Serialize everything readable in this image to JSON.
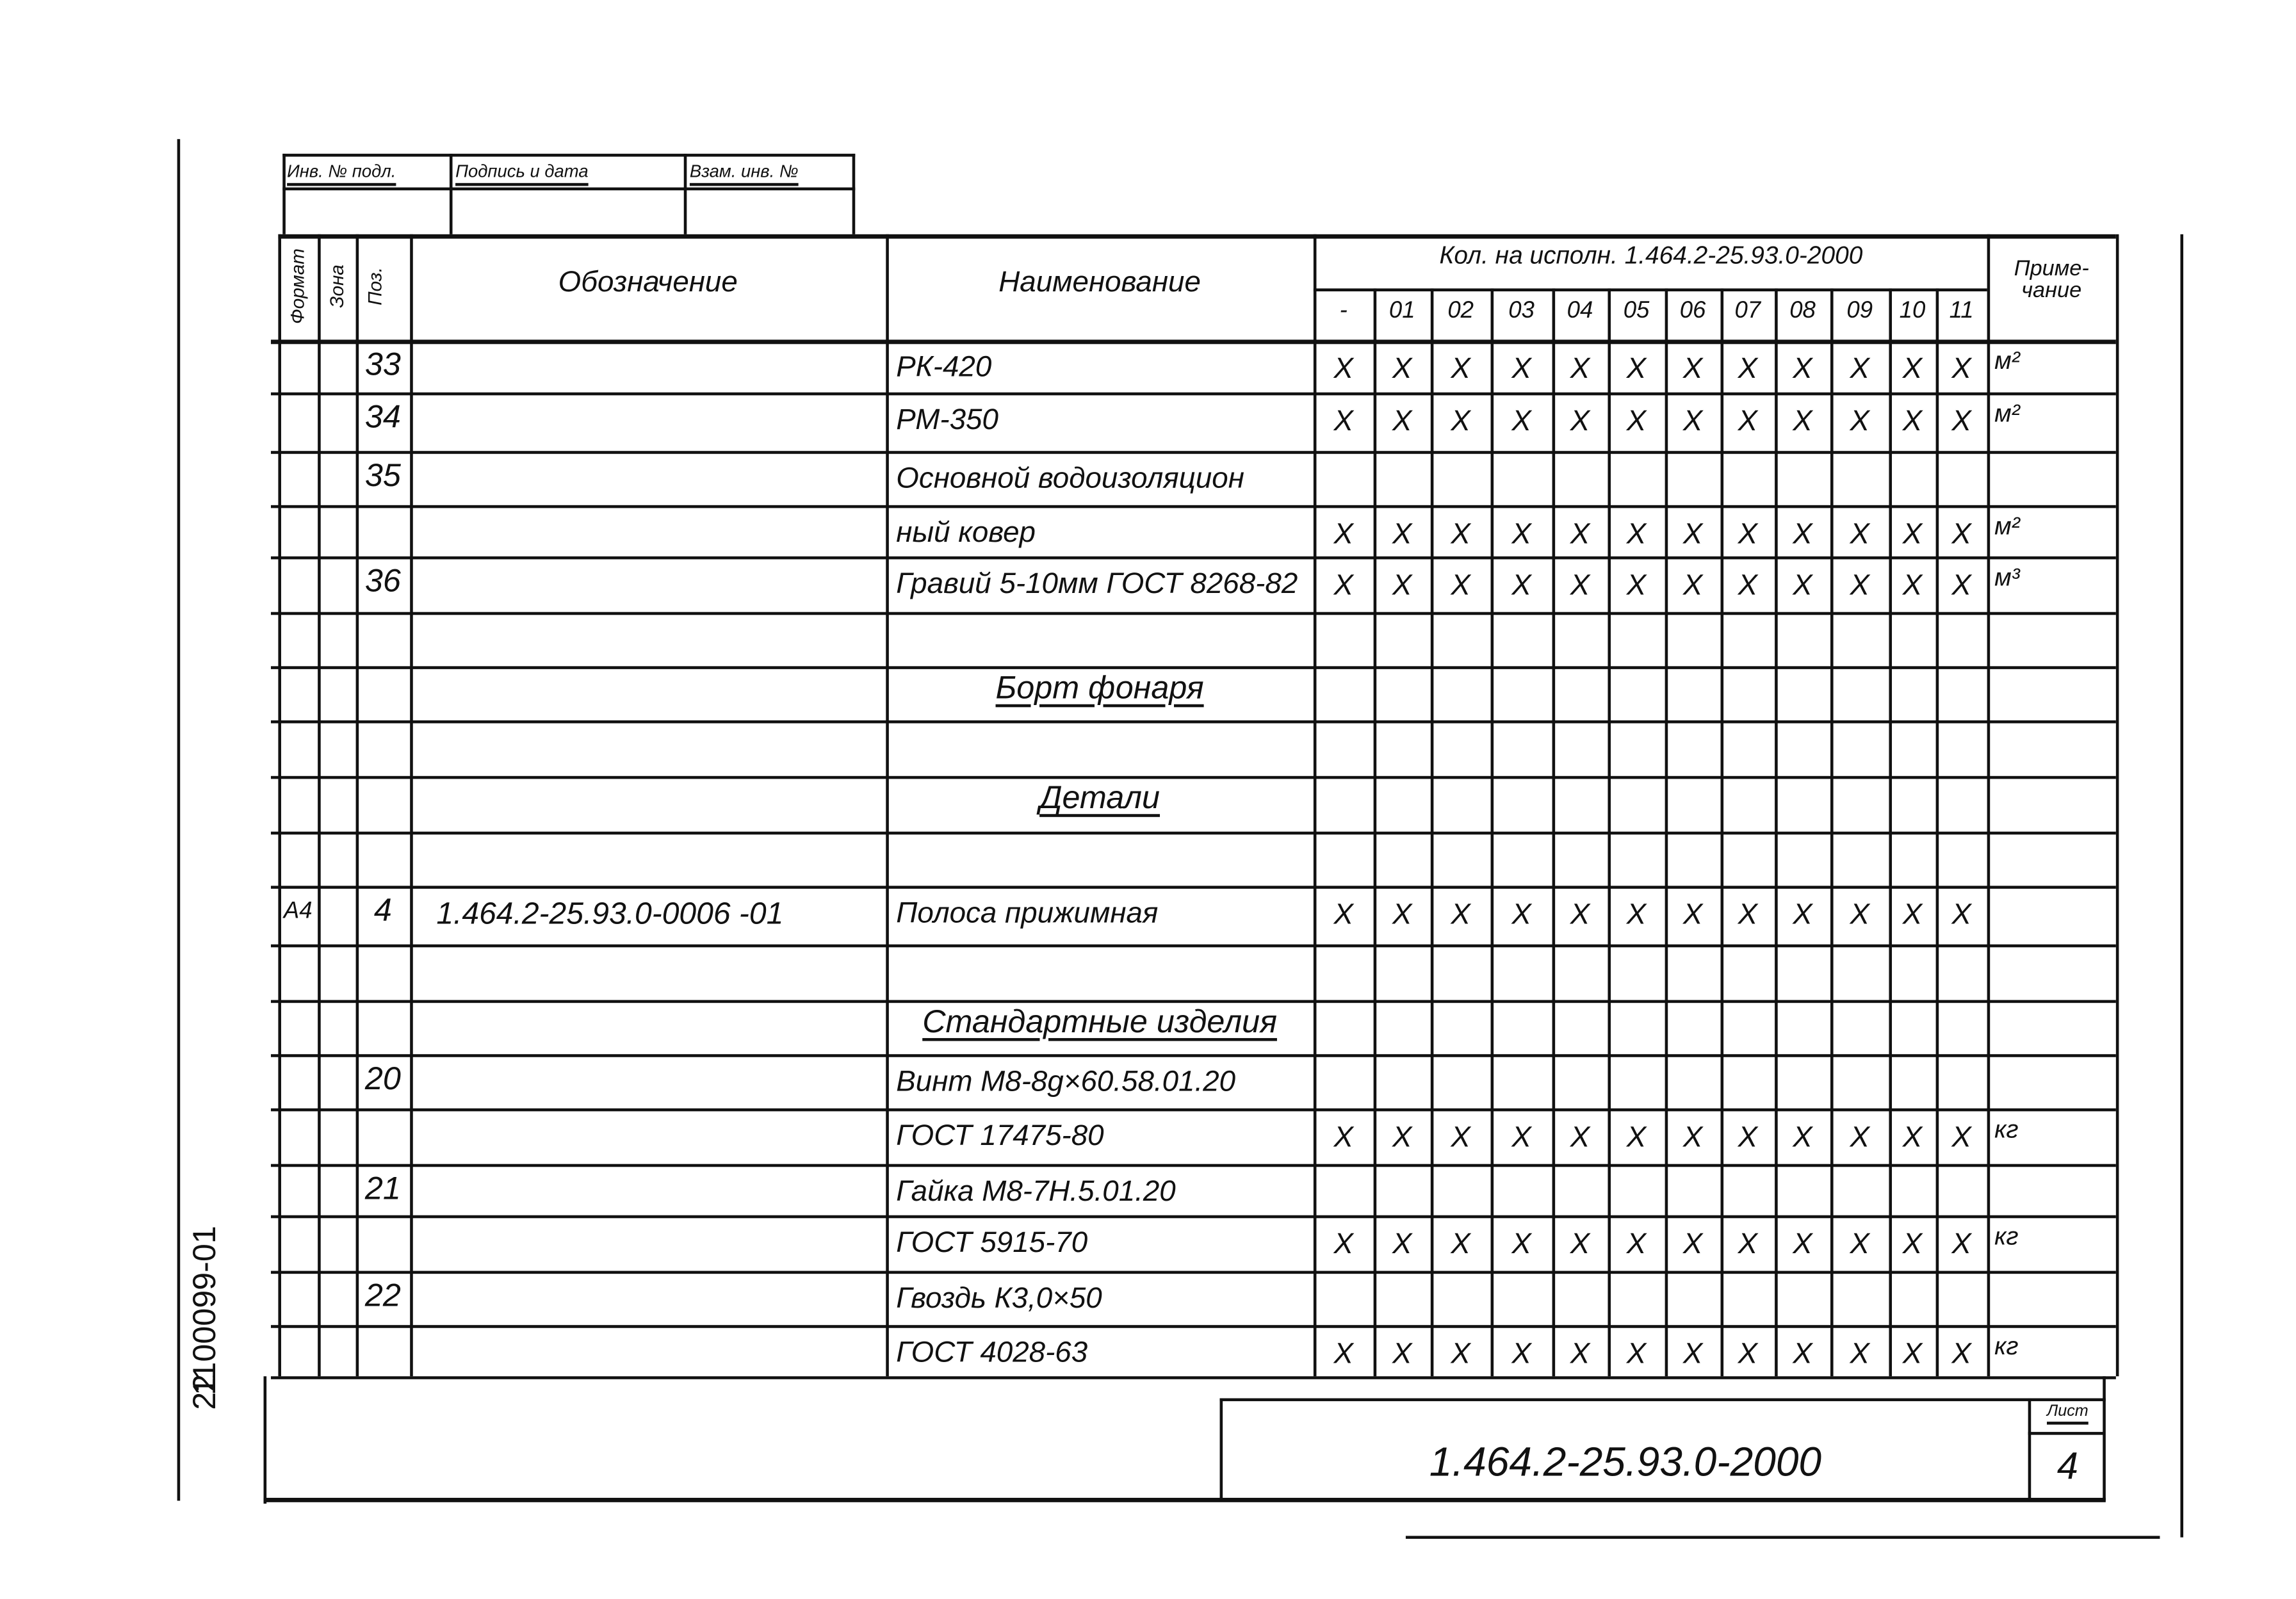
{
  "stamp_table": {
    "headers": [
      "Инв. № подл.",
      "Подпись и дата",
      "Взам. инв. №"
    ]
  },
  "header": {
    "format": "Формат",
    "zone": "Зона",
    "pos": "Поз.",
    "designation": "Обозначение",
    "name": "Наименование",
    "qty_title": "Кол. на исполн. 1.464.2-25.93.0-2000",
    "variants": [
      "-",
      "01",
      "02",
      "03",
      "04",
      "05",
      "06",
      "07",
      "08",
      "09",
      "10",
      "11"
    ],
    "note": "Приме-\nчание"
  },
  "rows": [
    {
      "format": "",
      "pos": "33",
      "designation": "",
      "name": "РК-420",
      "marks": true,
      "note": "м²"
    },
    {
      "format": "",
      "pos": "34",
      "designation": "",
      "name": "РМ-350",
      "marks": true,
      "note": "м²"
    },
    {
      "format": "",
      "pos": "35",
      "designation": "",
      "name": "Основной водоизоляцион",
      "marks": false,
      "note": ""
    },
    {
      "format": "",
      "pos": "",
      "designation": "",
      "name": "ный ковер",
      "marks": true,
      "note": "м²"
    },
    {
      "format": "",
      "pos": "36",
      "designation": "",
      "name": "Гравий 5-10мм ГОСТ 8268-82",
      "marks": true,
      "note": "м³"
    },
    {
      "format": "",
      "pos": "",
      "designation": "",
      "name": "",
      "marks": false,
      "note": ""
    },
    {
      "format": "",
      "pos": "",
      "designation": "",
      "name": "Борт фонаря",
      "section": true,
      "marks": false,
      "note": ""
    },
    {
      "format": "",
      "pos": "",
      "designation": "",
      "name": "",
      "marks": false,
      "note": ""
    },
    {
      "format": "",
      "pos": "",
      "designation": "",
      "name": "Детали",
      "section": true,
      "marks": false,
      "note": ""
    },
    {
      "format": "",
      "pos": "",
      "designation": "",
      "name": "",
      "marks": false,
      "note": ""
    },
    {
      "format": "А4",
      "pos": "4",
      "designation": "1.464.2-25.93.0-0006 -01",
      "name": "Полоса прижимная",
      "marks": true,
      "note": ""
    },
    {
      "format": "",
      "pos": "",
      "designation": "",
      "name": "",
      "marks": false,
      "note": ""
    },
    {
      "format": "",
      "pos": "",
      "designation": "",
      "name": "Стандартные изделия",
      "section": true,
      "marks": false,
      "note": ""
    },
    {
      "format": "",
      "pos": "20",
      "designation": "",
      "name": "Винт М8-8g×60.58.01.20",
      "marks": false,
      "note": ""
    },
    {
      "format": "",
      "pos": "",
      "designation": "",
      "name": "ГОСТ 17475-80",
      "marks": true,
      "note": "кг"
    },
    {
      "format": "",
      "pos": "21",
      "designation": "",
      "name": "Гайка М8-7Н.5.01.20",
      "marks": false,
      "note": ""
    },
    {
      "format": "",
      "pos": "",
      "designation": "",
      "name": "ГОСТ 5915-70",
      "marks": true,
      "note": "кг"
    },
    {
      "format": "",
      "pos": "22",
      "designation": "",
      "name": "Гвоздь К3,0×50",
      "marks": false,
      "note": ""
    },
    {
      "format": "",
      "pos": "",
      "designation": "",
      "name": "ГОСТ 4028-63",
      "marks": true,
      "note": "кг"
    }
  ],
  "mark_symbol": "X",
  "title_block": {
    "document_number": "1.464.2-25.93.0-2000",
    "sheet_label": "Лист",
    "sheet_number": "4"
  },
  "margin_text": {
    "archive_number": "1100099-01",
    "page": "22"
  }
}
